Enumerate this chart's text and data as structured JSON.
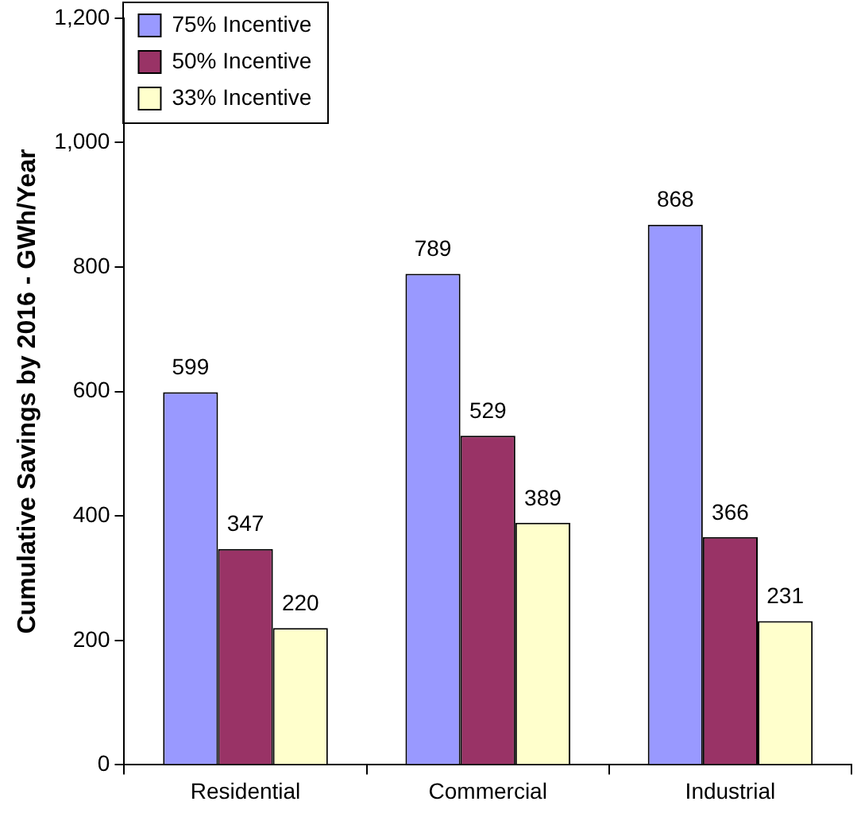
{
  "chart_data": {
    "type": "bar",
    "ylabel": "Cumulative Savings by 2016 - GWh/Year",
    "categories": [
      "Residential",
      "Commercial",
      "Industrial"
    ],
    "series": [
      {
        "name": "75% Incentive",
        "color": "#9999ff",
        "values": [
          599,
          789,
          868
        ]
      },
      {
        "name": "50% Incentive",
        "color": "#993366",
        "values": [
          347,
          529,
          366
        ]
      },
      {
        "name": "33% Incentive",
        "color": "#ffffcc",
        "values": [
          220,
          389,
          231
        ]
      }
    ],
    "ylim": [
      0,
      1200
    ],
    "yticks": [
      0,
      200,
      400,
      600,
      800,
      {
        "value": 1000,
        "label": "1,000"
      },
      {
        "value": 1200,
        "label": "1,200"
      }
    ],
    "grid": false,
    "legend": "top left",
    "data_labels": true
  }
}
